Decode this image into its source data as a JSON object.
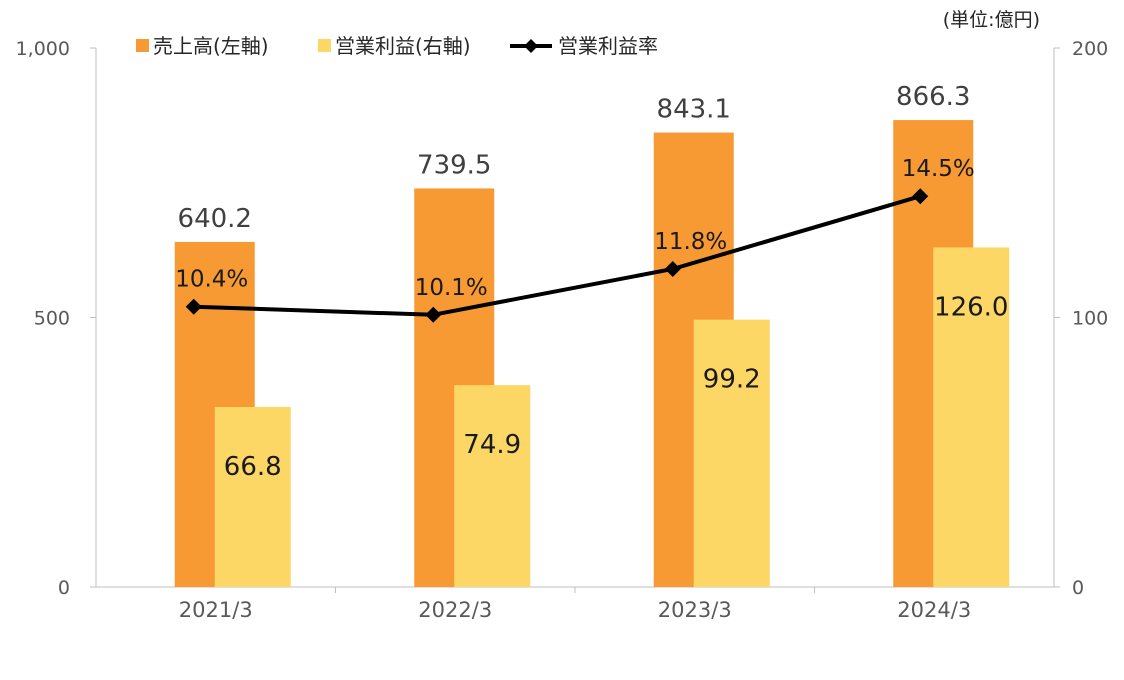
{
  "chart_data": {
    "type": "bar",
    "categories": [
      "2021/3",
      "2022/3",
      "2023/3",
      "2024/3"
    ],
    "series": [
      {
        "name": "売上高(左軸)",
        "type": "bar",
        "axis": "left",
        "values": [
          640.2,
          739.5,
          843.1,
          866.3
        ],
        "labels": [
          "640.2",
          "739.5",
          "843.1",
          "866.3"
        ],
        "color": "#F79A34"
      },
      {
        "name": "営業利益(右軸)",
        "type": "bar",
        "axis": "right",
        "values": [
          66.8,
          74.9,
          99.2,
          126.0
        ],
        "labels": [
          "66.8",
          "74.9",
          "99.2",
          "126.0"
        ],
        "color": "#FCD765"
      },
      {
        "name": "営業利益率",
        "type": "line",
        "values": [
          10.4,
          10.1,
          11.8,
          14.5
        ],
        "labels": [
          "10.4%",
          "10.1%",
          "11.8%",
          "14.5%"
        ],
        "color": "#000000",
        "marker": "diamond"
      }
    ],
    "left_axis": {
      "ylim": [
        0,
        1000
      ],
      "ticks": [
        "0",
        "500",
        "1,000"
      ]
    },
    "right_axis": {
      "ylim": [
        0,
        200
      ],
      "ticks": [
        "0",
        "100",
        "200"
      ]
    },
    "unit_label": "(単位:億円)",
    "legend_position": "top",
    "grid": false
  }
}
